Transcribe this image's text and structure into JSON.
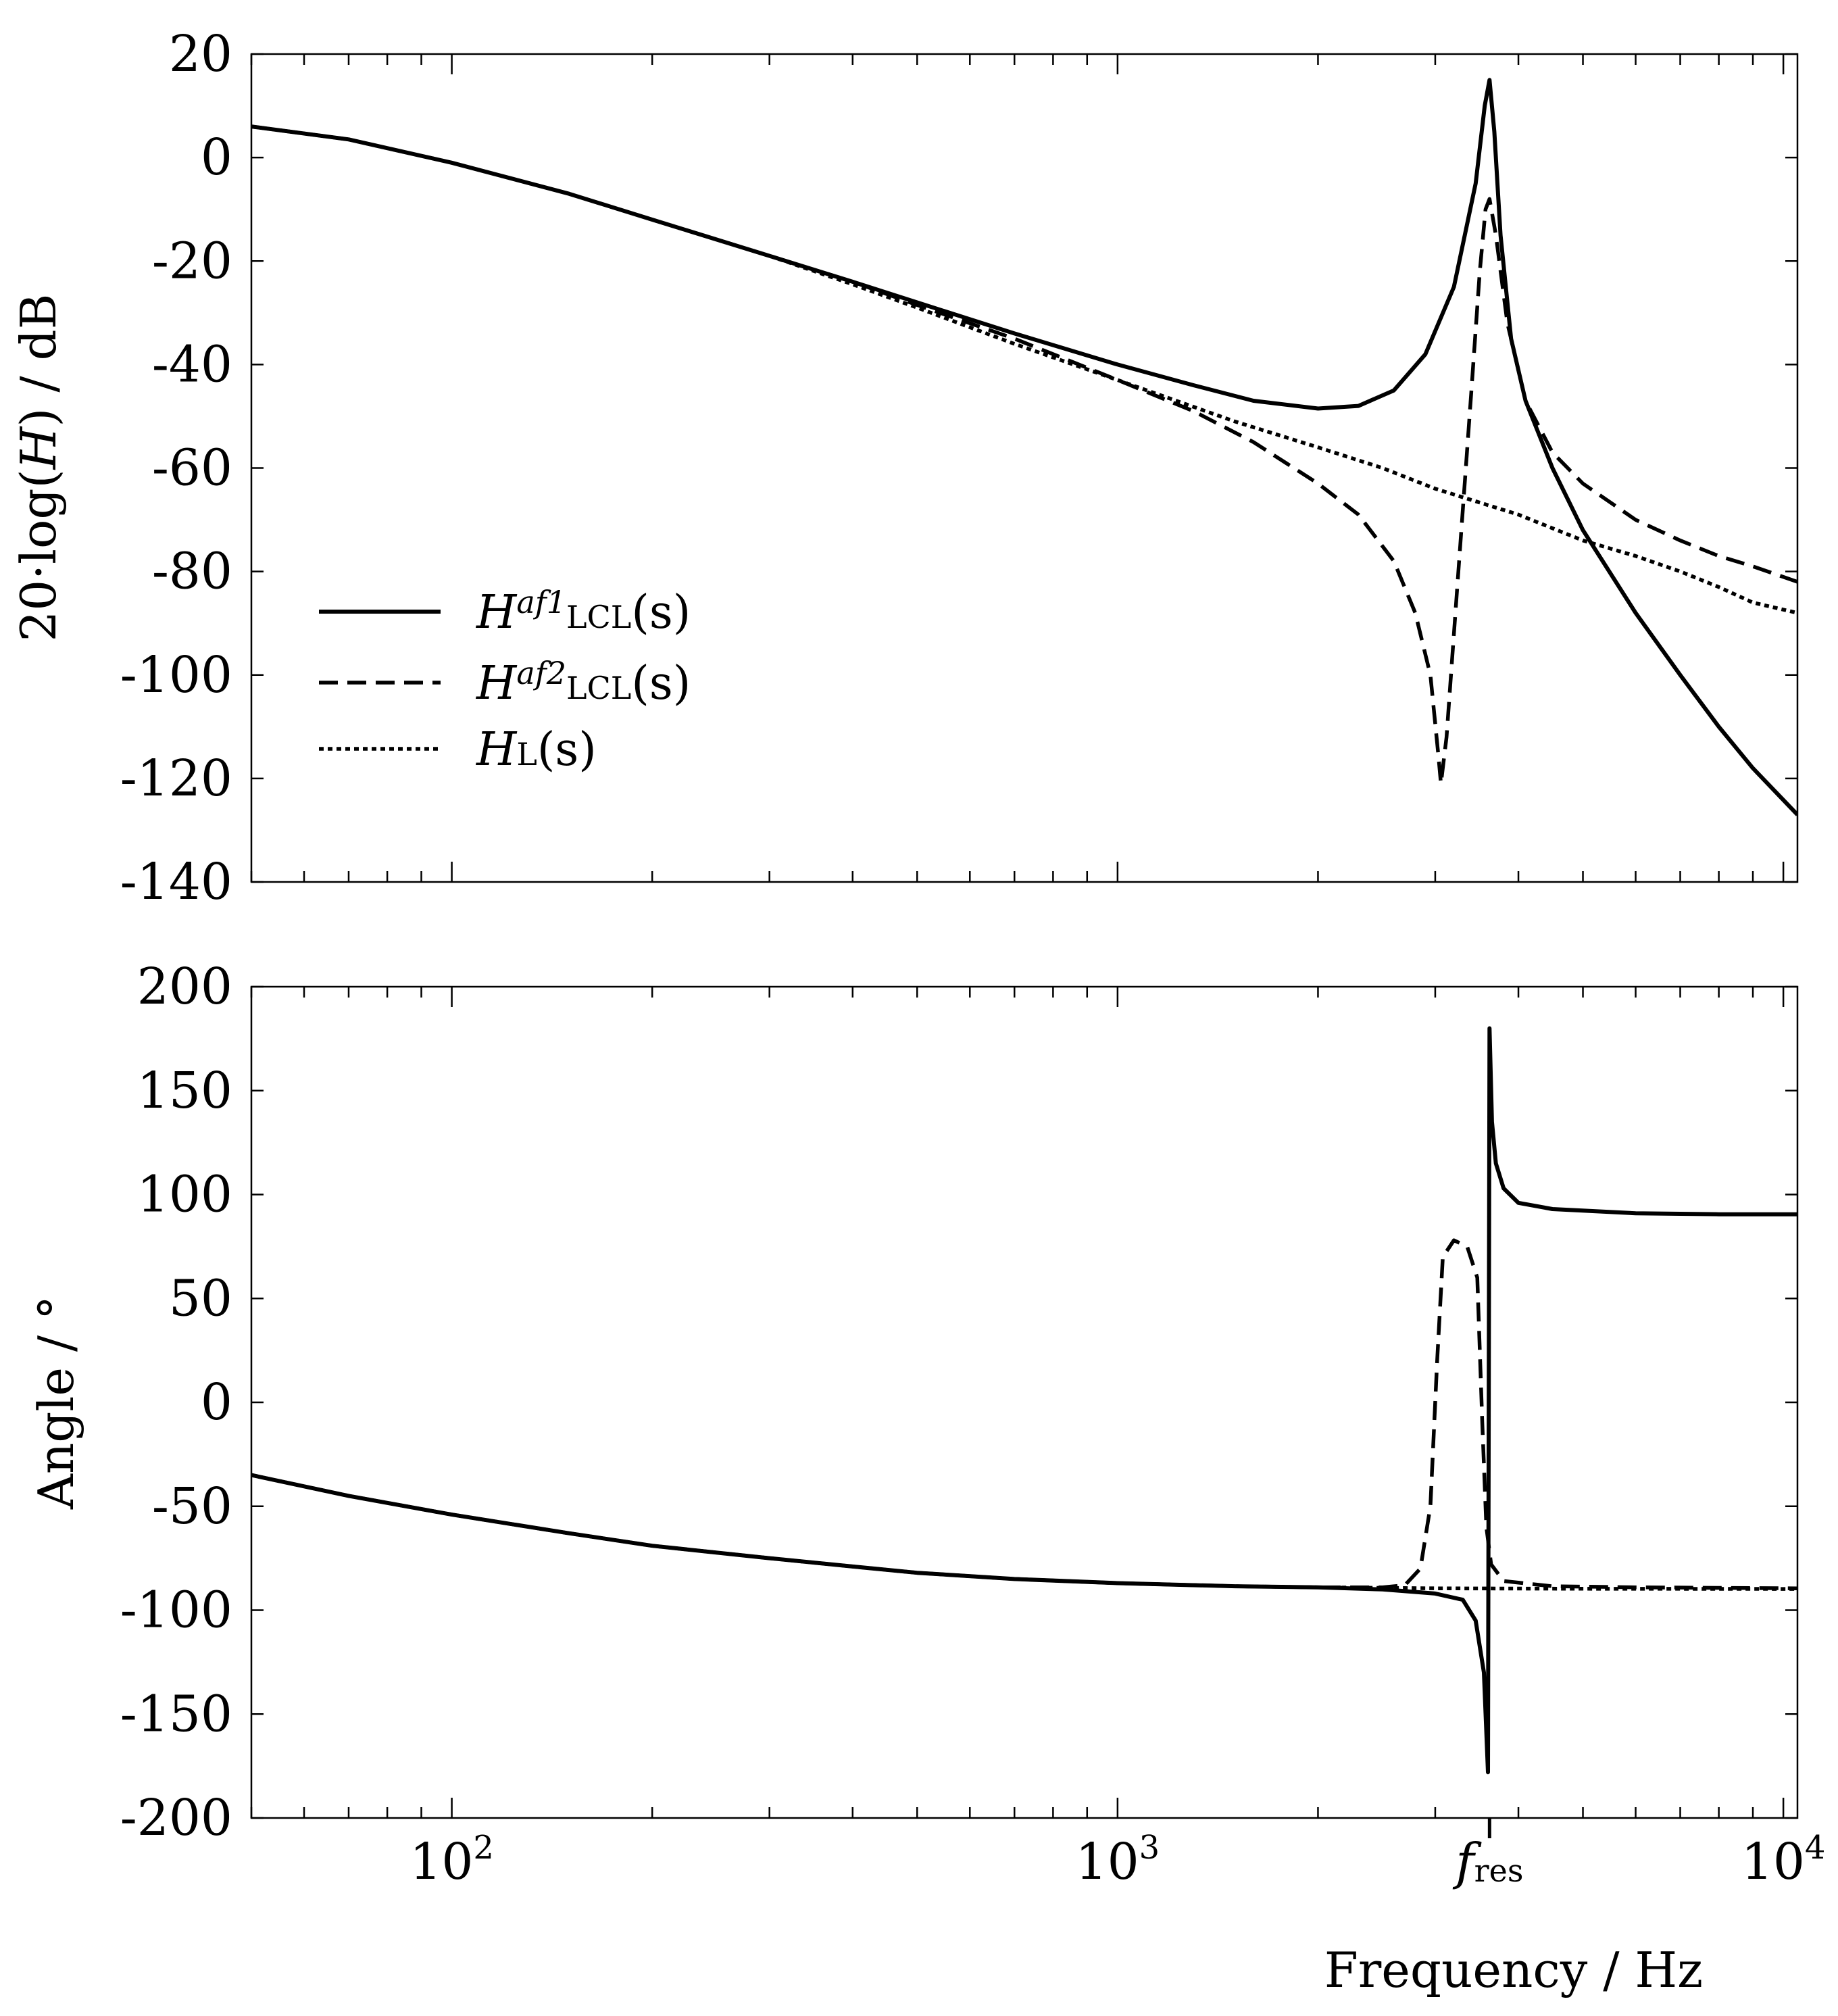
{
  "chart_data": [
    {
      "type": "line",
      "panel": "magnitude",
      "ylabel": "20·log(H) / dB",
      "ylabel_parts": {
        "pre": "20·log(",
        "var": "H",
        "post": ") / dB"
      },
      "ylim": [
        -140,
        20
      ],
      "yticks": [
        20,
        0,
        -20,
        -40,
        -60,
        -80,
        -100,
        -120,
        -140
      ],
      "ytick_labels": [
        "20",
        "0",
        "-20",
        "-40",
        "-60",
        "-80",
        "-100",
        "-120",
        "-140"
      ],
      "xscale": "log",
      "xlim": [
        50,
        10500
      ],
      "grid": false,
      "legend_position": "center-left",
      "series": [
        {
          "name": "Haf1LCL(s)",
          "style": "solid",
          "points": [
            [
              50,
              6
            ],
            [
              70,
              3.5
            ],
            [
              100,
              -1
            ],
            [
              150,
              -7
            ],
            [
              200,
              -12
            ],
            [
              300,
              -19
            ],
            [
              400,
              -24
            ],
            [
              500,
              -28
            ],
            [
              700,
              -34
            ],
            [
              1000,
              -40
            ],
            [
              1300,
              -44
            ],
            [
              1600,
              -47
            ],
            [
              2000,
              -48.5
            ],
            [
              2300,
              -48
            ],
            [
              2600,
              -45
            ],
            [
              2900,
              -38
            ],
            [
              3200,
              -25
            ],
            [
              3450,
              -5
            ],
            [
              3560,
              10
            ],
            [
              3620,
              15
            ],
            [
              3680,
              5
            ],
            [
              3760,
              -15
            ],
            [
              3900,
              -35
            ],
            [
              4100,
              -47
            ],
            [
              4500,
              -60
            ],
            [
              5000,
              -72
            ],
            [
              6000,
              -88
            ],
            [
              7000,
              -100
            ],
            [
              8000,
              -110
            ],
            [
              9000,
              -118
            ],
            [
              10500,
              -127
            ]
          ]
        },
        {
          "name": "Haf2LCL(s)",
          "style": "dashed",
          "points": [
            [
              50,
              6
            ],
            [
              70,
              3.5
            ],
            [
              100,
              -1
            ],
            [
              150,
              -7
            ],
            [
              200,
              -12
            ],
            [
              300,
              -19
            ],
            [
              400,
              -24
            ],
            [
              500,
              -28.5
            ],
            [
              700,
              -35
            ],
            [
              1000,
              -43
            ],
            [
              1300,
              -49
            ],
            [
              1600,
              -55
            ],
            [
              2000,
              -63
            ],
            [
              2300,
              -69
            ],
            [
              2600,
              -78
            ],
            [
              2800,
              -88
            ],
            [
              2950,
              -100
            ],
            [
              3030,
              -115
            ],
            [
              3060,
              -121
            ],
            [
              3120,
              -112
            ],
            [
              3250,
              -80
            ],
            [
              3400,
              -45
            ],
            [
              3500,
              -22
            ],
            [
              3570,
              -10
            ],
            [
              3620,
              -8
            ],
            [
              3700,
              -15
            ],
            [
              3850,
              -32
            ],
            [
              4100,
              -47
            ],
            [
              4500,
              -57
            ],
            [
              5000,
              -63
            ],
            [
              6000,
              -70
            ],
            [
              7000,
              -74
            ],
            [
              8000,
              -77
            ],
            [
              9000,
              -79
            ],
            [
              10500,
              -82
            ]
          ]
        },
        {
          "name": "HL(s)",
          "style": "dotted",
          "points": [
            [
              50,
              6
            ],
            [
              70,
              3.5
            ],
            [
              100,
              -1
            ],
            [
              150,
              -7
            ],
            [
              200,
              -12
            ],
            [
              300,
              -19
            ],
            [
              400,
              -24.5
            ],
            [
              500,
              -29
            ],
            [
              700,
              -36
            ],
            [
              1000,
              -43
            ],
            [
              1500,
              -51
            ],
            [
              2000,
              -56
            ],
            [
              2500,
              -60
            ],
            [
              3000,
              -64
            ],
            [
              4000,
              -69
            ],
            [
              5000,
              -74
            ],
            [
              6000,
              -77
            ],
            [
              7000,
              -80
            ],
            [
              8000,
              -83
            ],
            [
              9000,
              -86
            ],
            [
              10500,
              -88
            ]
          ]
        }
      ],
      "legend": [
        {
          "name": "Haf1LCL(s)",
          "base": "H",
          "sup": "af1",
          "sub": "LCL",
          "arg": "(s)",
          "style": "solid"
        },
        {
          "name": "Haf2LCL(s)",
          "base": "H",
          "sup": "af2",
          "sub": "LCL",
          "arg": "(s)",
          "style": "dashed"
        },
        {
          "name": "HL(s)",
          "base": "H",
          "sup": "",
          "sub": "L",
          "arg": "(s)",
          "style": "dotted"
        }
      ]
    },
    {
      "type": "line",
      "panel": "phase",
      "ylabel": "Angle / °",
      "xlabel": "Frequency / Hz",
      "ylim": [
        -200,
        200
      ],
      "yticks": [
        200,
        150,
        100,
        50,
        0,
        -50,
        -100,
        -150,
        -200
      ],
      "ytick_labels": [
        "200",
        "150",
        "100",
        "50",
        "0",
        "-50",
        "-100",
        "-150",
        "-200"
      ],
      "xscale": "log",
      "xlim": [
        50,
        10500
      ],
      "xtick_labels": [
        {
          "value": 100,
          "base": "10",
          "exp": "2"
        },
        {
          "value": 1000,
          "base": "10",
          "exp": "3"
        },
        {
          "value": 10000,
          "base": "10",
          "exp": "4"
        }
      ],
      "annotation": {
        "value": 3620,
        "main": "f",
        "sub": "res"
      },
      "grid": false,
      "series": [
        {
          "name": "Haf1LCL(s)",
          "style": "solid",
          "points": [
            [
              50,
              -35
            ],
            [
              70,
              -45
            ],
            [
              100,
              -54
            ],
            [
              150,
              -63
            ],
            [
              200,
              -69
            ],
            [
              300,
              -75
            ],
            [
              400,
              -79
            ],
            [
              500,
              -82
            ],
            [
              700,
              -85
            ],
            [
              1000,
              -87
            ],
            [
              1500,
              -88.5
            ],
            [
              2000,
              -89
            ],
            [
              2500,
              -90
            ],
            [
              3000,
              -92
            ],
            [
              3300,
              -95
            ],
            [
              3450,
              -105
            ],
            [
              3550,
              -130
            ],
            [
              3600,
              -178
            ],
            [
              3620,
              180
            ],
            [
              3650,
              135
            ],
            [
              3700,
              115
            ],
            [
              3800,
              103
            ],
            [
              4000,
              96
            ],
            [
              4500,
              93
            ],
            [
              6000,
              91
            ],
            [
              8000,
              90.5
            ],
            [
              10500,
              90.5
            ]
          ]
        },
        {
          "name": "Haf2LCL(s)",
          "style": "dashed",
          "points": [
            [
              50,
              -35
            ],
            [
              70,
              -45
            ],
            [
              100,
              -54
            ],
            [
              150,
              -63
            ],
            [
              200,
              -69
            ],
            [
              300,
              -75
            ],
            [
              400,
              -79
            ],
            [
              500,
              -82
            ],
            [
              700,
              -85
            ],
            [
              1000,
              -87
            ],
            [
              1500,
              -88.5
            ],
            [
              2000,
              -89
            ],
            [
              2500,
              -89
            ],
            [
              2700,
              -88
            ],
            [
              2850,
              -80
            ],
            [
              2950,
              -50
            ],
            [
              3020,
              20
            ],
            [
              3080,
              70
            ],
            [
              3200,
              78
            ],
            [
              3350,
              75
            ],
            [
              3470,
              60
            ],
            [
              3530,
              -10
            ],
            [
              3580,
              -60
            ],
            [
              3640,
              -78
            ],
            [
              3800,
              -86
            ],
            [
              4500,
              -88.5
            ],
            [
              6000,
              -89
            ],
            [
              10500,
              -89.5
            ]
          ]
        },
        {
          "name": "HL(s)",
          "style": "dotted",
          "points": [
            [
              50,
              -35
            ],
            [
              70,
              -45
            ],
            [
              100,
              -54
            ],
            [
              150,
              -63
            ],
            [
              200,
              -69
            ],
            [
              300,
              -75
            ],
            [
              400,
              -79
            ],
            [
              500,
              -82
            ],
            [
              700,
              -85
            ],
            [
              1000,
              -87
            ],
            [
              1500,
              -88.5
            ],
            [
              2000,
              -89
            ],
            [
              3000,
              -89.5
            ],
            [
              5000,
              -89.7
            ],
            [
              10500,
              -89.8
            ]
          ]
        }
      ]
    }
  ]
}
